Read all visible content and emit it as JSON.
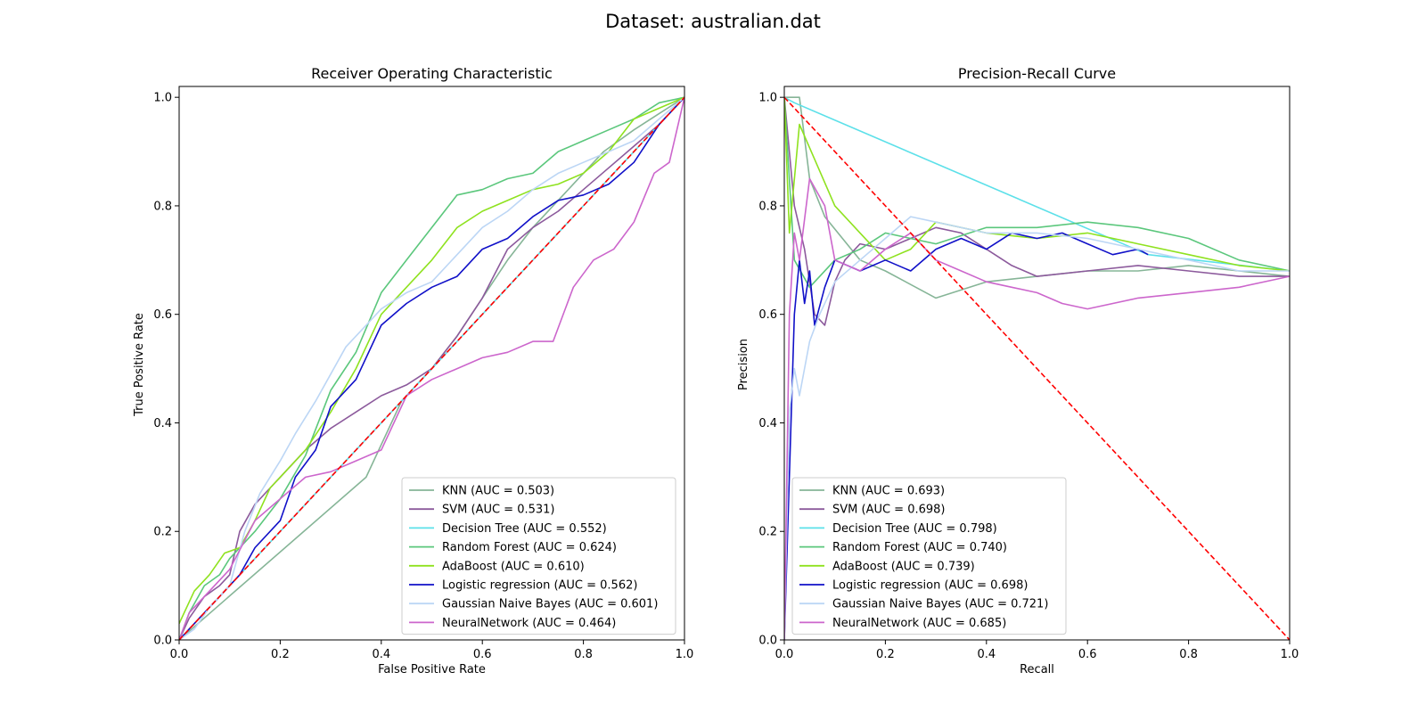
{
  "figure": {
    "suptitle": "Dataset: australian.dat"
  },
  "chart_data": [
    {
      "type": "line",
      "title": "Receiver Operating Characteristic",
      "xlabel": "False Positive Rate",
      "ylabel": "True Positive Rate",
      "xlim": [
        0,
        1
      ],
      "ylim": [
        0,
        1
      ],
      "xticks": [
        "0.0",
        "0.2",
        "0.4",
        "0.6",
        "0.8",
        "1.0"
      ],
      "yticks": [
        "0.0",
        "0.2",
        "0.4",
        "0.6",
        "0.8",
        "1.0"
      ],
      "legend_position": "lower-right",
      "reference_line": {
        "x": [
          0,
          1
        ],
        "y": [
          0,
          1
        ],
        "color": "#ff0000",
        "style": "dashed"
      },
      "series": [
        {
          "name": "KNN (AUC = 0.503)",
          "color": "#86b597",
          "x": [
            0,
            0.37,
            0.44,
            0.5,
            0.55,
            0.6,
            0.65,
            0.7,
            0.78,
            0.84,
            0.9,
            0.95,
            1.0
          ],
          "y": [
            0,
            0.3,
            0.44,
            0.5,
            0.56,
            0.63,
            0.7,
            0.76,
            0.84,
            0.9,
            0.94,
            0.97,
            1.0
          ]
        },
        {
          "name": "SVM (AUC = 0.531)",
          "color": "#8c5a9c",
          "x": [
            0,
            0.02,
            0.05,
            0.08,
            0.1,
            0.12,
            0.15,
            0.18,
            0.2,
            0.25,
            0.3,
            0.35,
            0.4,
            0.45,
            0.5,
            0.55,
            0.6,
            0.65,
            0.7,
            0.75,
            0.8,
            0.85,
            0.9,
            0.95,
            1.0
          ],
          "y": [
            0,
            0.04,
            0.08,
            0.1,
            0.12,
            0.2,
            0.25,
            0.28,
            0.3,
            0.35,
            0.39,
            0.42,
            0.45,
            0.47,
            0.5,
            0.56,
            0.63,
            0.72,
            0.76,
            0.79,
            0.83,
            0.87,
            0.91,
            0.95,
            1.0
          ]
        },
        {
          "name": "Decision Tree (AUC = 0.552)",
          "color": "#5ce0e9",
          "x": [
            0,
            1.0
          ],
          "y": [
            0,
            1.0
          ]
        },
        {
          "name": "Random Forest (AUC = 0.624)",
          "color": "#5bc77c",
          "x": [
            0,
            0.02,
            0.05,
            0.08,
            0.1,
            0.15,
            0.2,
            0.25,
            0.3,
            0.35,
            0.4,
            0.45,
            0.5,
            0.55,
            0.6,
            0.65,
            0.7,
            0.75,
            0.8,
            0.85,
            0.9,
            0.95,
            1.0
          ],
          "y": [
            0,
            0.05,
            0.1,
            0.12,
            0.15,
            0.2,
            0.26,
            0.34,
            0.46,
            0.53,
            0.64,
            0.7,
            0.76,
            0.82,
            0.83,
            0.85,
            0.86,
            0.9,
            0.92,
            0.94,
            0.96,
            0.99,
            1.0
          ]
        },
        {
          "name": "AdaBoost (AUC = 0.610)",
          "color": "#8fe21f",
          "x": [
            0,
            0.03,
            0.06,
            0.09,
            0.12,
            0.15,
            0.18,
            0.2,
            0.25,
            0.3,
            0.35,
            0.4,
            0.45,
            0.5,
            0.55,
            0.6,
            0.65,
            0.7,
            0.75,
            0.8,
            0.85,
            0.9,
            0.95,
            1.0
          ],
          "y": [
            0.03,
            0.09,
            0.12,
            0.16,
            0.17,
            0.22,
            0.28,
            0.3,
            0.35,
            0.42,
            0.5,
            0.6,
            0.65,
            0.7,
            0.76,
            0.79,
            0.81,
            0.83,
            0.84,
            0.86,
            0.9,
            0.96,
            0.98,
            1.0
          ]
        },
        {
          "name": "Logistic regression (AUC = 0.562)",
          "color": "#1010c8",
          "x": [
            0,
            0.02,
            0.05,
            0.08,
            0.12,
            0.15,
            0.2,
            0.23,
            0.27,
            0.3,
            0.35,
            0.4,
            0.45,
            0.5,
            0.55,
            0.6,
            0.65,
            0.7,
            0.75,
            0.8,
            0.85,
            0.9,
            0.95,
            1.0
          ],
          "y": [
            0,
            0.02,
            0.05,
            0.08,
            0.12,
            0.17,
            0.22,
            0.3,
            0.35,
            0.43,
            0.48,
            0.58,
            0.62,
            0.65,
            0.67,
            0.72,
            0.74,
            0.78,
            0.81,
            0.82,
            0.84,
            0.88,
            0.95,
            1.0
          ]
        },
        {
          "name": "Gaussian Naive Bayes (AUC = 0.601)",
          "color": "#bcd6f5",
          "x": [
            0,
            0.03,
            0.06,
            0.1,
            0.13,
            0.16,
            0.2,
            0.23,
            0.27,
            0.3,
            0.33,
            0.37,
            0.4,
            0.45,
            0.5,
            0.55,
            0.6,
            0.65,
            0.7,
            0.75,
            0.8,
            0.85,
            0.9,
            0.95,
            1.0
          ],
          "y": [
            0,
            0.02,
            0.06,
            0.1,
            0.2,
            0.27,
            0.33,
            0.38,
            0.44,
            0.49,
            0.54,
            0.58,
            0.61,
            0.64,
            0.66,
            0.71,
            0.76,
            0.79,
            0.83,
            0.86,
            0.88,
            0.9,
            0.92,
            0.96,
            1.0
          ]
        },
        {
          "name": "NeuralNetwork (AUC = 0.464)",
          "color": "#cc66cc",
          "x": [
            0,
            0.02,
            0.05,
            0.1,
            0.15,
            0.2,
            0.25,
            0.3,
            0.35,
            0.4,
            0.45,
            0.5,
            0.55,
            0.6,
            0.65,
            0.7,
            0.74,
            0.78,
            0.82,
            0.86,
            0.9,
            0.94,
            0.97,
            1.0
          ],
          "y": [
            0,
            0.05,
            0.08,
            0.13,
            0.22,
            0.26,
            0.3,
            0.31,
            0.33,
            0.35,
            0.45,
            0.48,
            0.5,
            0.52,
            0.53,
            0.55,
            0.55,
            0.65,
            0.7,
            0.72,
            0.77,
            0.86,
            0.88,
            1.0
          ]
        }
      ]
    },
    {
      "type": "line",
      "title": "Precision-Recall Curve",
      "xlabel": "Recall",
      "ylabel": "Precision",
      "xlim": [
        0,
        1
      ],
      "ylim": [
        0,
        1
      ],
      "xticks": [
        "0.0",
        "0.2",
        "0.4",
        "0.6",
        "0.8",
        "1.0"
      ],
      "yticks": [
        "0.0",
        "0.2",
        "0.4",
        "0.6",
        "0.8",
        "1.0"
      ],
      "legend_position": "lower-left",
      "reference_line": {
        "x": [
          0,
          1
        ],
        "y": [
          1,
          0
        ],
        "color": "#ff0000",
        "style": "dashed"
      },
      "series": [
        {
          "name": "KNN (AUC = 0.693)",
          "color": "#86b597",
          "x": [
            0,
            0.01,
            0.03,
            0.05,
            0.08,
            0.15,
            0.2,
            0.3,
            0.4,
            0.5,
            0.6,
            0.7,
            0.8,
            0.9,
            1.0
          ],
          "y": [
            1.0,
            1.0,
            1.0,
            0.85,
            0.78,
            0.7,
            0.68,
            0.63,
            0.66,
            0.67,
            0.68,
            0.68,
            0.69,
            0.68,
            0.67
          ]
        },
        {
          "name": "SVM (AUC = 0.698)",
          "color": "#8c5a9c",
          "x": [
            0,
            0.02,
            0.04,
            0.06,
            0.08,
            0.1,
            0.12,
            0.15,
            0.2,
            0.25,
            0.3,
            0.35,
            0.4,
            0.45,
            0.5,
            0.6,
            0.7,
            0.8,
            0.9,
            1.0
          ],
          "y": [
            1.0,
            0.8,
            0.72,
            0.6,
            0.58,
            0.66,
            0.7,
            0.73,
            0.72,
            0.74,
            0.76,
            0.75,
            0.72,
            0.69,
            0.67,
            0.68,
            0.69,
            0.68,
            0.67,
            0.67
          ]
        },
        {
          "name": "Decision Tree (AUC = 0.798)",
          "color": "#5ce0e9",
          "x": [
            0,
            0.02,
            0.72,
            1.0
          ],
          "y": [
            1.0,
            0.99,
            0.71,
            0.68
          ]
        },
        {
          "name": "Random Forest (AUC = 0.740)",
          "color": "#5bc77c",
          "x": [
            0,
            0.02,
            0.05,
            0.1,
            0.15,
            0.2,
            0.3,
            0.4,
            0.5,
            0.6,
            0.7,
            0.8,
            0.9,
            1.0
          ],
          "y": [
            1.0,
            0.7,
            0.65,
            0.7,
            0.72,
            0.75,
            0.73,
            0.76,
            0.76,
            0.77,
            0.76,
            0.74,
            0.7,
            0.68
          ]
        },
        {
          "name": "AdaBoost (AUC = 0.739)",
          "color": "#8fe21f",
          "x": [
            0,
            0.01,
            0.03,
            0.1,
            0.15,
            0.2,
            0.25,
            0.3,
            0.4,
            0.5,
            0.6,
            0.7,
            0.8,
            0.9,
            1.0
          ],
          "y": [
            1.0,
            0.75,
            0.95,
            0.8,
            0.75,
            0.7,
            0.72,
            0.77,
            0.75,
            0.74,
            0.75,
            0.73,
            0.71,
            0.69,
            0.68
          ]
        },
        {
          "name": "Logistic regression (AUC = 0.698)",
          "color": "#1010c8",
          "x": [
            0,
            0.02,
            0.03,
            0.04,
            0.05,
            0.06,
            0.08,
            0.1,
            0.15,
            0.2,
            0.25,
            0.3,
            0.35,
            0.4,
            0.45,
            0.5,
            0.55,
            0.6,
            0.65,
            0.7,
            0.72
          ],
          "y": [
            0,
            0.6,
            0.7,
            0.62,
            0.68,
            0.58,
            0.65,
            0.7,
            0.68,
            0.7,
            0.68,
            0.72,
            0.74,
            0.72,
            0.75,
            0.74,
            0.75,
            0.73,
            0.71,
            0.72,
            0.71
          ]
        },
        {
          "name": "Gaussian Naive Bayes (AUC = 0.721)",
          "color": "#bcd6f5",
          "x": [
            0,
            0.01,
            0.02,
            0.03,
            0.05,
            0.07,
            0.1,
            0.15,
            0.2,
            0.25,
            0.3,
            0.35,
            0.4,
            0.5,
            0.6,
            0.7,
            0.8,
            0.9,
            1.0
          ],
          "y": [
            0,
            0.42,
            0.5,
            0.45,
            0.55,
            0.6,
            0.66,
            0.7,
            0.74,
            0.78,
            0.77,
            0.76,
            0.75,
            0.75,
            0.74,
            0.72,
            0.7,
            0.68,
            0.68
          ]
        },
        {
          "name": "NeuralNetwork (AUC = 0.685)",
          "color": "#cc66cc",
          "x": [
            0,
            0.01,
            0.02,
            0.03,
            0.05,
            0.08,
            0.1,
            0.15,
            0.2,
            0.25,
            0.3,
            0.35,
            0.4,
            0.45,
            0.5,
            0.55,
            0.6,
            0.7,
            0.8,
            0.9,
            1.0
          ],
          "y": [
            0,
            0.6,
            0.75,
            0.7,
            0.85,
            0.8,
            0.7,
            0.68,
            0.72,
            0.75,
            0.7,
            0.68,
            0.66,
            0.65,
            0.64,
            0.62,
            0.61,
            0.63,
            0.64,
            0.65,
            0.67
          ]
        }
      ]
    }
  ]
}
